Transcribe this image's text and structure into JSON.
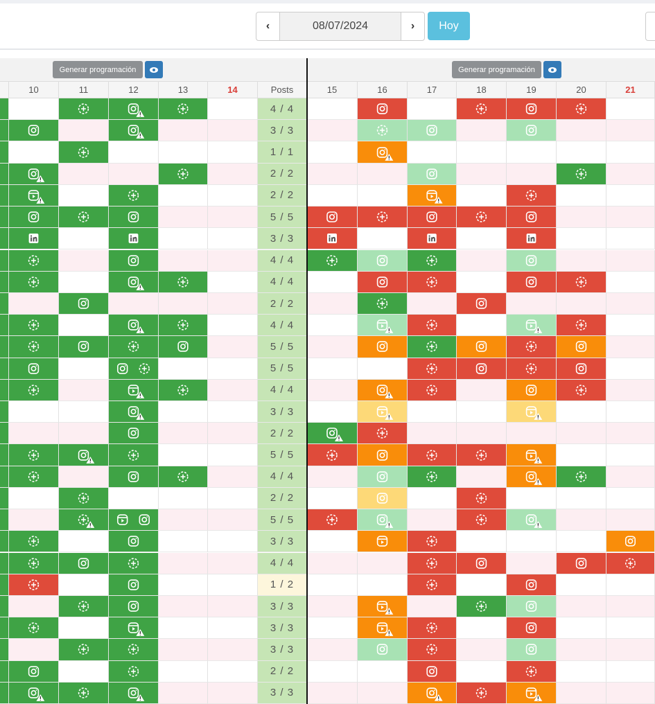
{
  "toolbar": {
    "date": "08/07/2024",
    "today": "Hoy"
  },
  "sections": [
    {
      "button": "Generar programación"
    },
    {
      "button": "Generar programación"
    }
  ],
  "table": {
    "days_left": [
      "10",
      "11",
      "12",
      "13",
      "14"
    ],
    "posts_header": "Posts",
    "days_right": [
      "15",
      "16",
      "17",
      "18",
      "19",
      "20",
      "21"
    ],
    "posts": [
      "4 / 4",
      "3 / 3",
      "1 / 1",
      "2 / 2",
      "2 / 2",
      "5 / 5",
      "3 / 3",
      "4 / 4",
      "4 / 4",
      "2 / 2",
      "4 / 4",
      "5 / 5",
      "5 / 5",
      "4 / 4",
      "3 / 3",
      "2 / 2",
      "5 / 5",
      "4 / 4",
      "2 / 2",
      "5 / 5",
      "3 / 3",
      "4 / 4",
      "1 / 2",
      "3 / 3",
      "3 / 3",
      "3 / 3",
      "2 / 2",
      "3 / 3"
    ]
  }
}
